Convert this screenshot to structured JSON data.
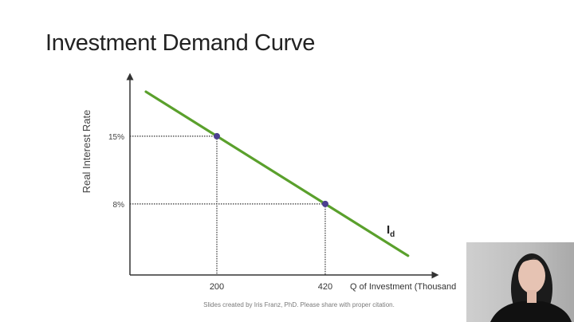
{
  "slide": {
    "title": "Investment Demand Curve",
    "footer": "Slides created by Iris Franz, PhD. Please share with proper citation."
  },
  "chart_data": {
    "type": "line",
    "title": "",
    "xlabel": "Q of Investment (Thousand",
    "ylabel": "Real Interest Rate",
    "series": [
      {
        "name": "I_d",
        "label_main": "I",
        "label_sub": "d",
        "color": "#5aa02c",
        "x": [
          56,
          588
        ],
        "y": [
          19.6,
          2.65
        ]
      }
    ],
    "points": [
      {
        "x": 200,
        "y": 15,
        "x_label": "200",
        "y_label": "15%"
      },
      {
        "x": 420,
        "y": 8,
        "x_label": "420",
        "y_label": "8%"
      }
    ],
    "point_color": "#4b3f8f",
    "xlim": [
      0,
      640
    ],
    "ylim": [
      0,
      20.5
    ],
    "grid": false
  },
  "webcam": {
    "icon": "presenter-video"
  }
}
